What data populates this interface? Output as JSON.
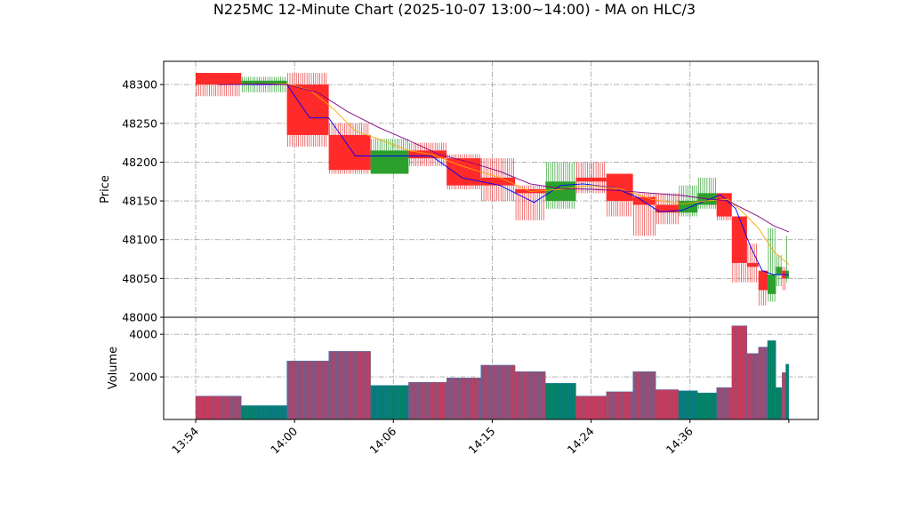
{
  "chart_data": {
    "type": "candlestick-renko-volume",
    "title": "N225MC 12-Minute Chart (2025-10-07 13:00~14:00) - MA on HLC/3",
    "price_axis": {
      "label": "Price",
      "ylim": [
        48000,
        48330
      ],
      "ticks": [
        48000,
        48050,
        48100,
        48150,
        48200,
        48250,
        48300
      ]
    },
    "volume_axis": {
      "label": "Volume",
      "ylim": [
        0,
        4800
      ],
      "ticks": [
        2000,
        4000
      ]
    },
    "x_tick_labels": [
      "13:54",
      "14:00",
      "14:06",
      "14:15",
      "14:24",
      "14:36",
      ""
    ],
    "bars": [
      {
        "i0": 0,
        "i1": 6,
        "open": 48315,
        "close": 48300,
        "high": 48315,
        "low": 48285,
        "volume": 1100,
        "dir": "down"
      },
      {
        "i0": 6,
        "i1": 12,
        "open": 48300,
        "close": 48305,
        "high": 48310,
        "low": 48290,
        "volume": 650,
        "dir": "up"
      },
      {
        "i0": 12,
        "i1": 17.5,
        "open": 48300,
        "close": 48235,
        "high": 48315,
        "low": 48220,
        "volume": 2750,
        "dir": "down"
      },
      {
        "i0": 17.5,
        "i1": 23,
        "open": 48235,
        "close": 48190,
        "high": 48250,
        "low": 48185,
        "volume": 3200,
        "dir": "down"
      },
      {
        "i0": 23,
        "i1": 28,
        "open": 48185,
        "close": 48215,
        "high": 48230,
        "low": 48185,
        "volume": 1600,
        "dir": "up"
      },
      {
        "i0": 28,
        "i1": 33,
        "open": 48215,
        "close": 48205,
        "high": 48225,
        "low": 48195,
        "volume": 1750,
        "dir": "down"
      },
      {
        "i0": 33,
        "i1": 37.5,
        "open": 48205,
        "close": 48170,
        "high": 48210,
        "low": 48165,
        "volume": 1950,
        "dir": "down"
      },
      {
        "i0": 37.5,
        "i1": 42,
        "open": 48180,
        "close": 48170,
        "high": 48205,
        "low": 48150,
        "volume": 2550,
        "dir": "down"
      },
      {
        "i0": 42,
        "i1": 46,
        "open": 48165,
        "close": 48160,
        "high": 48170,
        "low": 48125,
        "volume": 2250,
        "dir": "down"
      },
      {
        "i0": 46,
        "i1": 50,
        "open": 48150,
        "close": 48175,
        "high": 48200,
        "low": 48140,
        "volume": 1700,
        "dir": "up"
      },
      {
        "i0": 50,
        "i1": 54,
        "open": 48180,
        "close": 48175,
        "high": 48200,
        "low": 48160,
        "volume": 1100,
        "dir": "down"
      },
      {
        "i0": 54,
        "i1": 57.5,
        "open": 48185,
        "close": 48150,
        "high": 48185,
        "low": 48130,
        "volume": 1300,
        "dir": "down"
      },
      {
        "i0": 57.5,
        "i1": 60.5,
        "open": 48155,
        "close": 48145,
        "high": 48160,
        "low": 48105,
        "volume": 2250,
        "dir": "down"
      },
      {
        "i0": 60.5,
        "i1": 63.5,
        "open": 48145,
        "close": 48135,
        "high": 48160,
        "low": 48120,
        "volume": 1400,
        "dir": "down"
      },
      {
        "i0": 63.5,
        "i1": 66,
        "open": 48135,
        "close": 48150,
        "high": 48170,
        "low": 48130,
        "volume": 1350,
        "dir": "up"
      },
      {
        "i0": 66,
        "i1": 68.5,
        "open": 48145,
        "close": 48160,
        "high": 48180,
        "low": 48140,
        "volume": 1250,
        "dir": "up"
      },
      {
        "i0": 68.5,
        "i1": 70.5,
        "open": 48160,
        "close": 48130,
        "high": 48160,
        "low": 48125,
        "volume": 1500,
        "dir": "down"
      },
      {
        "i0": 70.5,
        "i1": 72.5,
        "open": 48130,
        "close": 48070,
        "high": 48130,
        "low": 48045,
        "volume": 4400,
        "dir": "down"
      },
      {
        "i0": 72.5,
        "i1": 74,
        "open": 48070,
        "close": 48065,
        "high": 48095,
        "low": 48045,
        "volume": 3100,
        "dir": "down"
      },
      {
        "i0": 74,
        "i1": 75.2,
        "open": 48060,
        "close": 48035,
        "high": 48060,
        "low": 48015,
        "volume": 3400,
        "dir": "down"
      },
      {
        "i0": 75.2,
        "i1": 76.3,
        "open": 48030,
        "close": 48055,
        "high": 48115,
        "low": 48020,
        "volume": 3700,
        "dir": "up"
      },
      {
        "i0": 76.3,
        "i1": 77.1,
        "open": 48055,
        "close": 48065,
        "high": 48080,
        "low": 48040,
        "volume": 1500,
        "dir": "up"
      },
      {
        "i0": 77.1,
        "i1": 77.6,
        "open": 48060,
        "close": 48050,
        "high": 48065,
        "low": 48035,
        "volume": 2200,
        "dir": "down"
      },
      {
        "i0": 77.6,
        "i1": 78,
        "open": 48050,
        "close": 48060,
        "high": 48105,
        "low": 48045,
        "volume": 2600,
        "dir": "up"
      }
    ],
    "ma_series": [
      {
        "color": "#0000ff",
        "points": [
          [
            3,
            48300
          ],
          [
            9,
            48300
          ],
          [
            12,
            48300
          ],
          [
            15,
            48257
          ],
          [
            17.5,
            48257
          ],
          [
            21,
            48208
          ],
          [
            24,
            48208
          ],
          [
            27,
            48208
          ],
          [
            31,
            48208
          ],
          [
            35,
            48180
          ],
          [
            40,
            48170
          ],
          [
            44.5,
            48148
          ],
          [
            48,
            48170
          ],
          [
            51,
            48172
          ],
          [
            55,
            48167
          ],
          [
            58,
            48155
          ],
          [
            61,
            48136
          ],
          [
            64,
            48138
          ],
          [
            67,
            48150
          ],
          [
            69,
            48158
          ],
          [
            71,
            48140
          ],
          [
            73,
            48090
          ],
          [
            74.5,
            48060
          ],
          [
            76,
            48055
          ],
          [
            78,
            48055
          ]
        ]
      },
      {
        "color": "#ffa500",
        "points": [
          [
            3,
            48300
          ],
          [
            9,
            48301
          ],
          [
            12,
            48301
          ],
          [
            15,
            48293
          ],
          [
            18,
            48270
          ],
          [
            21,
            48240
          ],
          [
            24,
            48230
          ],
          [
            28,
            48215
          ],
          [
            31,
            48210
          ],
          [
            35,
            48195
          ],
          [
            40,
            48180
          ],
          [
            44,
            48162
          ],
          [
            48,
            48165
          ],
          [
            52,
            48170
          ],
          [
            56,
            48165
          ],
          [
            60,
            48152
          ],
          [
            64,
            48146
          ],
          [
            67,
            48150
          ],
          [
            70,
            48152
          ],
          [
            72,
            48135
          ],
          [
            74,
            48115
          ],
          [
            76,
            48085
          ],
          [
            78,
            48068
          ]
        ]
      },
      {
        "color": "#800080",
        "points": [
          [
            3,
            48300
          ],
          [
            9,
            48301
          ],
          [
            12,
            48300
          ],
          [
            16,
            48290
          ],
          [
            20,
            48265
          ],
          [
            24,
            48245
          ],
          [
            28,
            48228
          ],
          [
            32,
            48210
          ],
          [
            36,
            48200
          ],
          [
            40,
            48188
          ],
          [
            44,
            48172
          ],
          [
            48,
            48166
          ],
          [
            52,
            48165
          ],
          [
            56,
            48163
          ],
          [
            60,
            48160
          ],
          [
            64,
            48157
          ],
          [
            67,
            48153
          ],
          [
            70,
            48150
          ],
          [
            72,
            48140
          ],
          [
            74,
            48130
          ],
          [
            76,
            48118
          ],
          [
            78,
            48110
          ]
        ]
      }
    ],
    "colors": {
      "up_body": "#2ca02c",
      "down_body": "#ff2a2a",
      "up_wick": "#2ca02c",
      "down_wick": "#e83a3a",
      "vol_up_edge": "#1f77b4",
      "vol_up_fill": "#008060",
      "vol_down_fill": "#c83a5a",
      "vol_edge": "#1f77b4"
    },
    "grid": true
  }
}
